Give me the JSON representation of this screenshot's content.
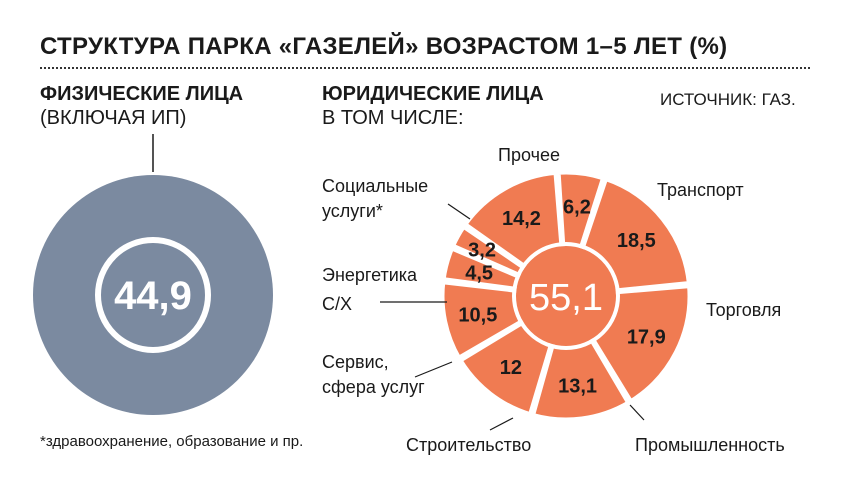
{
  "title": "СТРУКТУРА ПАРКА «ГАЗЕЛЕЙ» ВОЗРАСТОМ 1–5 ЛЕТ (%)",
  "individuals": {
    "heading": "ФИЗИЧЕСКИЕ ЛИЦА",
    "subheading": "(ВКЛЮЧАЯ ИП)",
    "value": "44,9"
  },
  "legal": {
    "heading": "ЮРИДИЧЕСКИЕ ЛИЦА",
    "subheading": "В ТОМ ЧИСЛЕ:",
    "total": "55,1"
  },
  "source": "ИСТОЧНИК: ГАЗ.",
  "footnote": "*здравоохранение, образование и пр.",
  "colors": {
    "individuals": "#7b8aa0",
    "legal": "#f07b52",
    "text": "#1a1a1a"
  },
  "chart_data": [
    {
      "type": "pie",
      "title": "ФИЗИЧЕСКИЕ ЛИЦА (ВКЛЮЧАЯ ИП)",
      "values": [
        44.9
      ],
      "labels": [
        "44,9"
      ]
    },
    {
      "type": "pie",
      "title": "ЮРИДИЧЕСКИЕ ЛИЦА — В ТОМ ЧИСЛЕ",
      "total": 55.1,
      "categories": [
        "Прочее",
        "Транспорт",
        "Торговля",
        "Промышленность",
        "Строительство",
        "Сервис, сфера услуг",
        "С/Х",
        "Энергетика",
        "Социальные услуги*"
      ],
      "values": [
        6.2,
        18.5,
        17.9,
        13.1,
        12,
        10.5,
        4.5,
        3.2,
        14.2
      ],
      "value_labels": [
        "6,2",
        "18,5",
        "17,9",
        "13,1",
        "12",
        "10,5",
        "4,5",
        "3,2",
        "14,2"
      ]
    }
  ]
}
